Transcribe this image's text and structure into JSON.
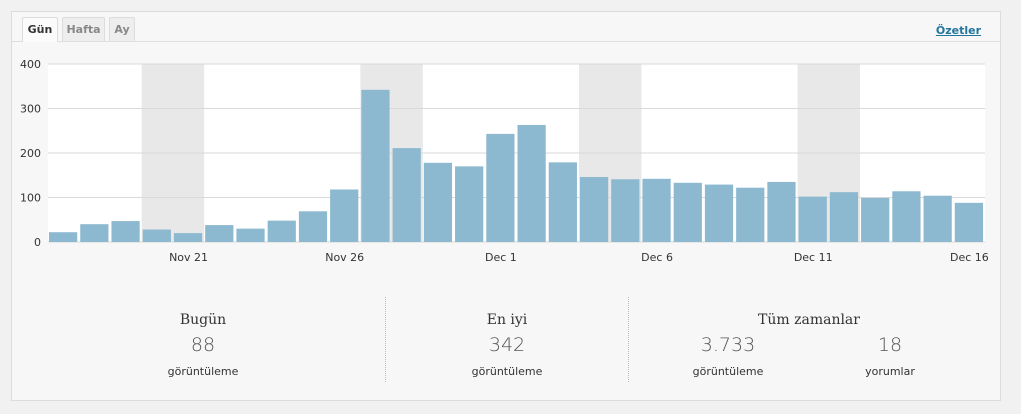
{
  "tabs": [
    {
      "label": "Gün",
      "active": true
    },
    {
      "label": "Hafta",
      "active": false
    },
    {
      "label": "Ay",
      "active": false
    }
  ],
  "summaries_link": "Özetler",
  "colors": {
    "bar": "#8cb9d0",
    "weekend_band": "#e8e8e8",
    "grid": "#d9d9d9",
    "link": "#21759b"
  },
  "chart_data": {
    "type": "bar",
    "ylim": [
      0,
      400
    ],
    "yticks": [
      0,
      100,
      200,
      300,
      400
    ],
    "values": [
      22,
      40,
      47,
      28,
      20,
      38,
      30,
      48,
      69,
      118,
      342,
      211,
      178,
      170,
      243,
      263,
      179,
      146,
      141,
      142,
      133,
      129,
      122,
      135,
      102,
      112,
      99,
      114,
      104,
      88
    ],
    "xtick_labels": [
      "Nov 21",
      "Nov 26",
      "Dec 1",
      "Dec 6",
      "Dec 11",
      "Dec 16"
    ],
    "xtick_indices": [
      4,
      9,
      14,
      19,
      24,
      29
    ],
    "weekend_bands": [
      [
        3,
        4
      ],
      [
        10,
        11
      ],
      [
        17,
        18
      ],
      [
        24,
        25
      ]
    ],
    "grid": true
  },
  "stats": {
    "today": {
      "title": "Bugün",
      "value": "88",
      "label": "görüntüleme"
    },
    "best": {
      "title": "En iyi",
      "value": "342",
      "label": "görüntüleme"
    },
    "all_time": {
      "title": "Tüm zamanlar",
      "views_value": "3.733",
      "views_label": "görüntüleme",
      "comments_value": "18",
      "comments_label": "yorumlar"
    }
  }
}
